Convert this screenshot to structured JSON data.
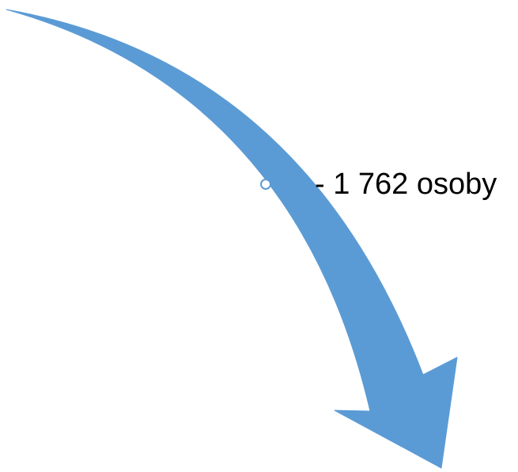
{
  "arrow": {
    "fill_color": "#5b9bd5",
    "handle_color": "#ffffff",
    "handle_stroke": "#5b9bd5"
  },
  "label": {
    "text": "- 1 762 osoby"
  }
}
